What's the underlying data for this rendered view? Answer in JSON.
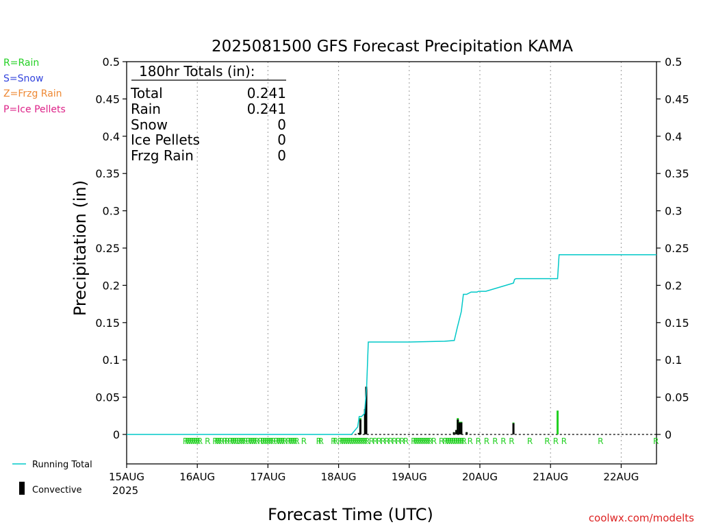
{
  "chart_data": {
    "type": "bar",
    "title": "2025081500 GFS Forecast Precipitation KAMA",
    "xlabel": "Forecast Time (UTC)",
    "ylabel": "Precipitation (in)",
    "ylim": [
      -0.04,
      0.5
    ],
    "y_ticks": [
      0,
      0.05,
      0.1,
      0.15,
      0.2,
      0.25,
      0.3,
      0.35,
      0.4,
      0.45,
      0.5
    ],
    "y_tick_labels": [
      "0",
      "0.05",
      "0.1",
      "0.15",
      "0.2",
      "0.25",
      "0.3",
      "0.35",
      "0.4",
      "0.45",
      "0.5"
    ],
    "xlim_hours": [
      0,
      180
    ],
    "x_ticks_hours": [
      0,
      24,
      48,
      72,
      96,
      120,
      144,
      168
    ],
    "x_tick_labels": [
      "15AUG",
      "16AUG",
      "17AUG",
      "18AUG",
      "19AUG",
      "20AUG",
      "21AUG",
      "22AUG"
    ],
    "x_year_label": "2025",
    "grid": "vertical dotted",
    "colors": {
      "running_total": "#00c8c8",
      "rain": "#22d022",
      "snow": "#3344dd",
      "frzg_rain": "#ee8833",
      "ice_pellets": "#dd2288",
      "convective": "#000000"
    },
    "legend_top": [
      {
        "label": "R=Rain",
        "color": "#22d022"
      },
      {
        "label": "S=Snow",
        "color": "#3344dd"
      },
      {
        "label": "Z=Frzg Rain",
        "color": "#ee8833"
      },
      {
        "label": "P=Ice Pellets",
        "color": "#dd2288"
      }
    ],
    "legend_bottom": {
      "running_total_label": "Running Total",
      "convective_label": "Convective"
    },
    "totals_box": {
      "heading": "180hr Totals (in):",
      "rows": [
        {
          "label": "Total",
          "value": "0.241"
        },
        {
          "label": "Rain",
          "value": "0.241"
        },
        {
          "label": "Snow",
          "value": "0"
        },
        {
          "label": "Ice Pellets",
          "value": "0"
        },
        {
          "label": "Frzg Rain",
          "value": "0"
        }
      ]
    },
    "precip_bars": [
      {
        "hour": 78.9,
        "total": 0.002,
        "convective": 0.002
      },
      {
        "hour": 79.4,
        "total": 0.022,
        "convective": 0.02
      },
      {
        "hour": 81.0,
        "total": 0.034,
        "convective": 0.034
      },
      {
        "hour": 81.4,
        "total": 0.064,
        "convective": 0.064
      },
      {
        "hour": 111.2,
        "total": 0.003,
        "convective": 0.003
      },
      {
        "hour": 112.0,
        "total": 0.006,
        "convective": 0.006
      },
      {
        "hour": 112.5,
        "total": 0.022,
        "convective": 0.02
      },
      {
        "hour": 113.1,
        "total": 0.017,
        "convective": 0.016
      },
      {
        "hour": 113.7,
        "total": 0.017,
        "convective": 0.016
      },
      {
        "hour": 115.5,
        "total": 0.003,
        "convective": 0.003
      },
      {
        "hour": 131.4,
        "total": 0.016,
        "convective": 0.015
      },
      {
        "hour": 146.4,
        "total": 0.032,
        "convective": 0
      }
    ],
    "running_total": {
      "hours": [
        0,
        76.4,
        78.5,
        79.0,
        79.8,
        80.8,
        81.5,
        82.1,
        96,
        108,
        111.3,
        112.3,
        113.7,
        114.4,
        115.5,
        117,
        119,
        119.6,
        120.2,
        121.3,
        122,
        131.4,
        131.8,
        132.3,
        144,
        146.4,
        146.9,
        180
      ],
      "values": [
        0,
        0,
        0.01,
        0.024,
        0.024,
        0.028,
        0.062,
        0.124,
        0.124,
        0.125,
        0.126,
        0.143,
        0.165,
        0.188,
        0.188,
        0.191,
        0.191,
        0.192,
        0.192,
        0.192,
        0.192,
        0.203,
        0.208,
        0.209,
        0.209,
        0.209,
        0.241,
        0.241
      ]
    },
    "zero_line_dashed_from_hour": 76,
    "type_markers_hours": [
      20,
      20.7,
      21.4,
      22.1,
      22.8,
      23.5,
      24.2,
      24.9,
      27.5,
      30.1,
      30.8,
      31.5,
      32.2,
      33.4,
      34.1,
      35.3,
      36.0,
      36.7,
      37.4,
      38.2,
      38.9,
      39.6,
      40.3,
      41.4,
      42.1,
      42.8,
      43.5,
      44.2,
      45.5,
      46.3,
      47.0,
      47.7,
      48.4,
      49.1,
      49.8,
      50.9,
      51.6,
      52.3,
      53.0,
      53.7,
      55.0,
      55.7,
      56.4,
      57.1,
      57.8,
      60.2,
      65.3,
      66.0,
      70.3,
      71.0,
      72.6,
      73.3,
      74.0,
      74.7,
      75.4,
      76.1,
      76.8,
      77.5,
      78.2,
      78.9,
      79.6,
      80.3,
      81.0,
      81.7,
      83.2,
      84.5,
      85.8,
      87.1,
      88.4,
      89.7,
      91.0,
      92.3,
      93.6,
      94.9,
      97.5,
      98.2,
      98.9,
      99.6,
      100.3,
      101.0,
      101.7,
      102.4,
      103.1,
      104.4,
      107.0,
      108.3,
      109.0,
      109.7,
      110.4,
      111.1,
      111.8,
      112.5,
      113.2,
      113.9,
      114.6,
      116.7,
      119.5,
      122.3,
      125.2,
      128.0,
      130.8,
      137.0,
      142.9,
      145.8,
      148.6,
      161.0,
      179.8
    ],
    "type_marker_char": "R",
    "credit": "coolwx.com/modelts"
  }
}
